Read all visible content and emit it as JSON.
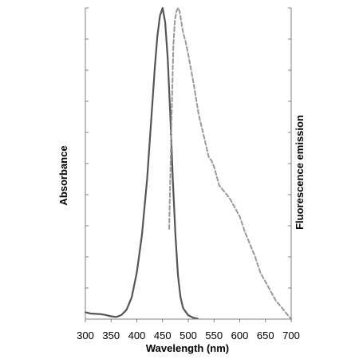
{
  "chart_data": {
    "type": "line",
    "title": "",
    "xlabel": "Wavelength (nm)",
    "ylabel_left": "Absorbance",
    "ylabel_right": "Fluorescence emission",
    "xlim": [
      300,
      700
    ],
    "ylim": [
      0,
      1
    ],
    "x_ticks": [
      "300",
      "350",
      "400",
      "450",
      "500",
      "550",
      "600",
      "650",
      "700"
    ],
    "grid": false,
    "legend": "none",
    "series": [
      {
        "axis": "left",
        "style": "solid",
        "color": "#555555",
        "x": [
          300,
          310,
          320,
          330,
          340,
          350,
          360,
          370,
          380,
          390,
          400,
          410,
          420,
          430,
          435,
          440,
          445,
          450,
          455,
          460,
          465,
          470,
          475,
          480,
          485,
          490,
          500,
          510,
          518
        ],
        "y": [
          0.022,
          0.018,
          0.017,
          0.016,
          0.013,
          0.009,
          0.007,
          0.013,
          0.03,
          0.07,
          0.15,
          0.27,
          0.45,
          0.69,
          0.81,
          0.91,
          0.975,
          1.0,
          0.955,
          0.84,
          0.66,
          0.45,
          0.27,
          0.14,
          0.07,
          0.035,
          0.012,
          0.004,
          0.002
        ]
      },
      {
        "axis": "right",
        "style": "dashed",
        "color": "#999999",
        "x": [
          463,
          465,
          468,
          471,
          474,
          477,
          480,
          483,
          486,
          490,
          495,
          500,
          510,
          520,
          530,
          540,
          545,
          550,
          555,
          560,
          570,
          580,
          590,
          600,
          610,
          620,
          630,
          640,
          650,
          660,
          670,
          680,
          690,
          700
        ],
        "y": [
          0.29,
          0.45,
          0.68,
          0.88,
          0.96,
          0.99,
          1.0,
          0.99,
          0.96,
          0.92,
          0.89,
          0.85,
          0.76,
          0.66,
          0.59,
          0.52,
          0.51,
          0.49,
          0.46,
          0.43,
          0.41,
          0.39,
          0.36,
          0.33,
          0.28,
          0.24,
          0.2,
          0.15,
          0.12,
          0.09,
          0.06,
          0.04,
          0.02,
          0.0
        ]
      }
    ]
  }
}
